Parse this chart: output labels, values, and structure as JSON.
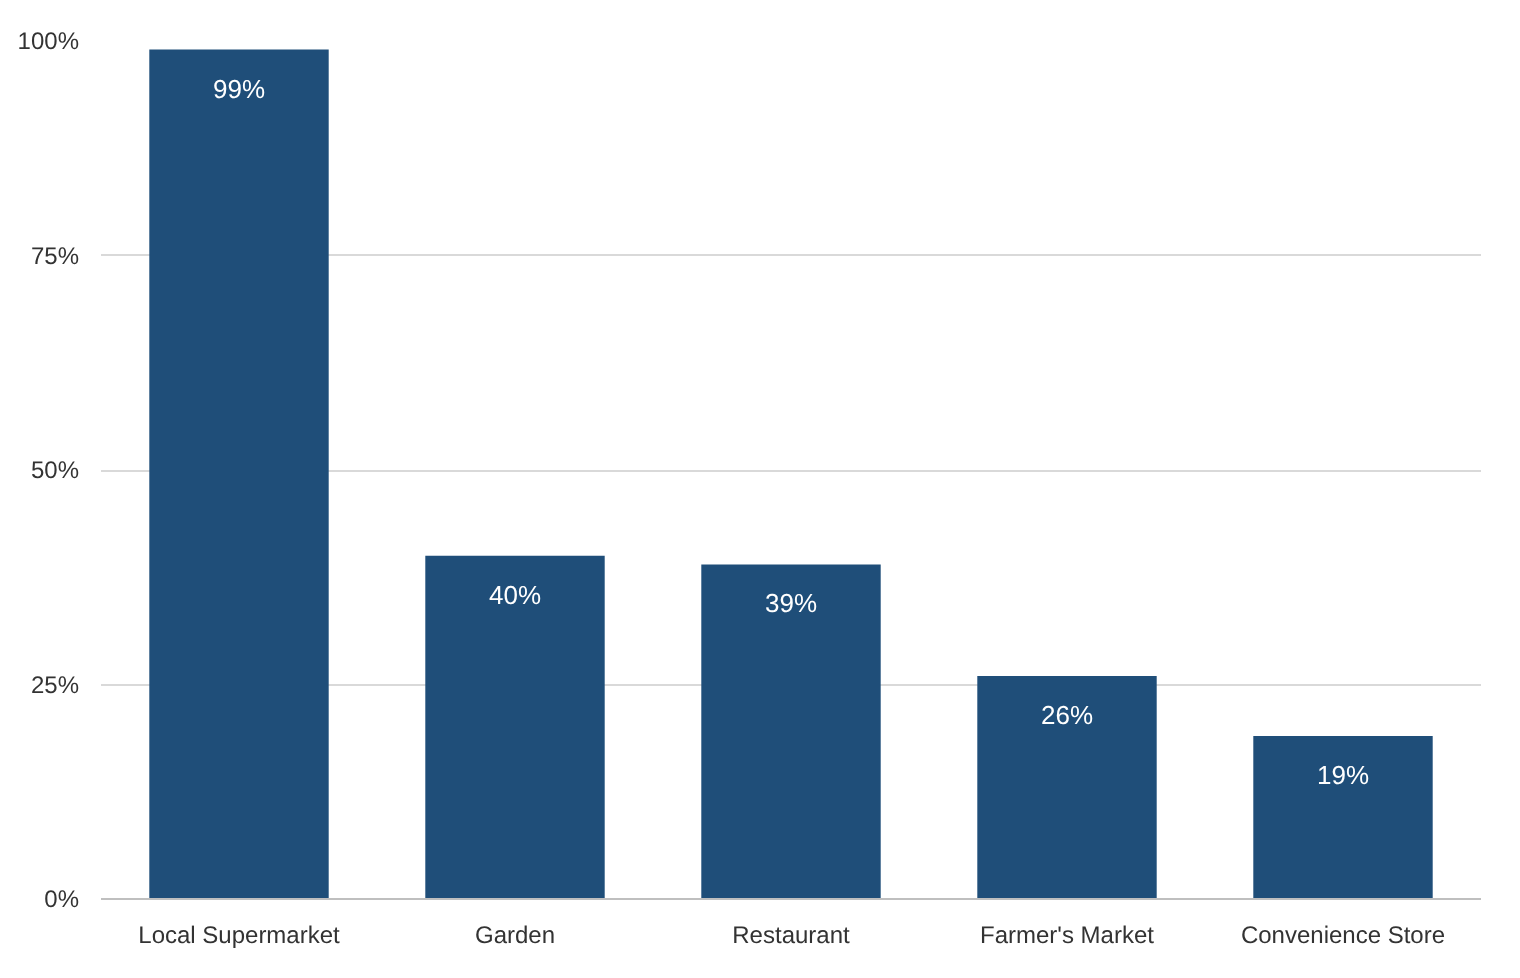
{
  "chart_data": {
    "type": "bar",
    "categories": [
      "Local Supermarket",
      "Garden",
      "Restaurant",
      "Farmer's Market",
      "Convenience Store"
    ],
    "values": [
      99,
      40,
      39,
      26,
      19
    ],
    "color": "#1f4e79",
    "value_labels": [
      "99%",
      "40%",
      "39%",
      "26%",
      "19%"
    ],
    "ylim": [
      0,
      100
    ],
    "yticks": [
      {
        "value": 0,
        "label": "0%"
      },
      {
        "value": 25,
        "label": "25%"
      },
      {
        "value": 50,
        "label": "50%"
      },
      {
        "value": 75,
        "label": "75%"
      },
      {
        "value": 100,
        "label": "100%"
      }
    ],
    "grid": "y"
  }
}
